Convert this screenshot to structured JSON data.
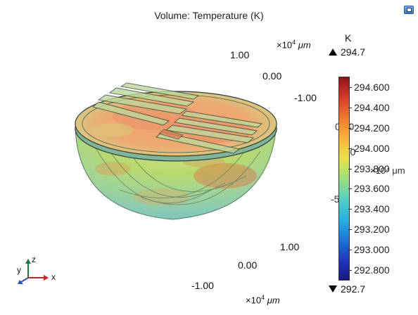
{
  "plot": {
    "title": "Volume: Temperature (K)",
    "colorbar": {
      "unit": "K",
      "max_label": "294.7",
      "min_label": "292.7",
      "ticks": [
        "294.600",
        "294.400",
        "294.200",
        "294.000",
        "293.800",
        "293.600",
        "293.400",
        "293.200",
        "293.000",
        "292.800"
      ],
      "range": [
        292.7,
        294.7
      ]
    },
    "axes": {
      "top_scale_prefix": "×10",
      "top_scale_exp": "4",
      "top_scale_unit": "μm",
      "bottom_scale_prefix": "×10",
      "bottom_scale_exp": "4",
      "bottom_scale_unit": "μm",
      "mid_scale_text": "×10⁴ μm",
      "tick_top_1": "1.00",
      "tick_top_2": "0.00",
      "tick_top_3": "-1.00",
      "tick_mid_1": "0.00",
      "tick_mid_2": "-50",
      "tick_mid_3": "-50",
      "tick_bot_1": "1.00",
      "tick_bot_2": "0.00",
      "tick_bot_3": "-1.00"
    },
    "triad": {
      "z": "z",
      "y": "y",
      "x": "x"
    },
    "colors": {
      "hot": "#e0573a",
      "warm": "#f2b14a",
      "mid": "#b9d86a",
      "cool": "#7cc6b8"
    }
  },
  "icons": {
    "window_button": "window-restore-icon"
  }
}
